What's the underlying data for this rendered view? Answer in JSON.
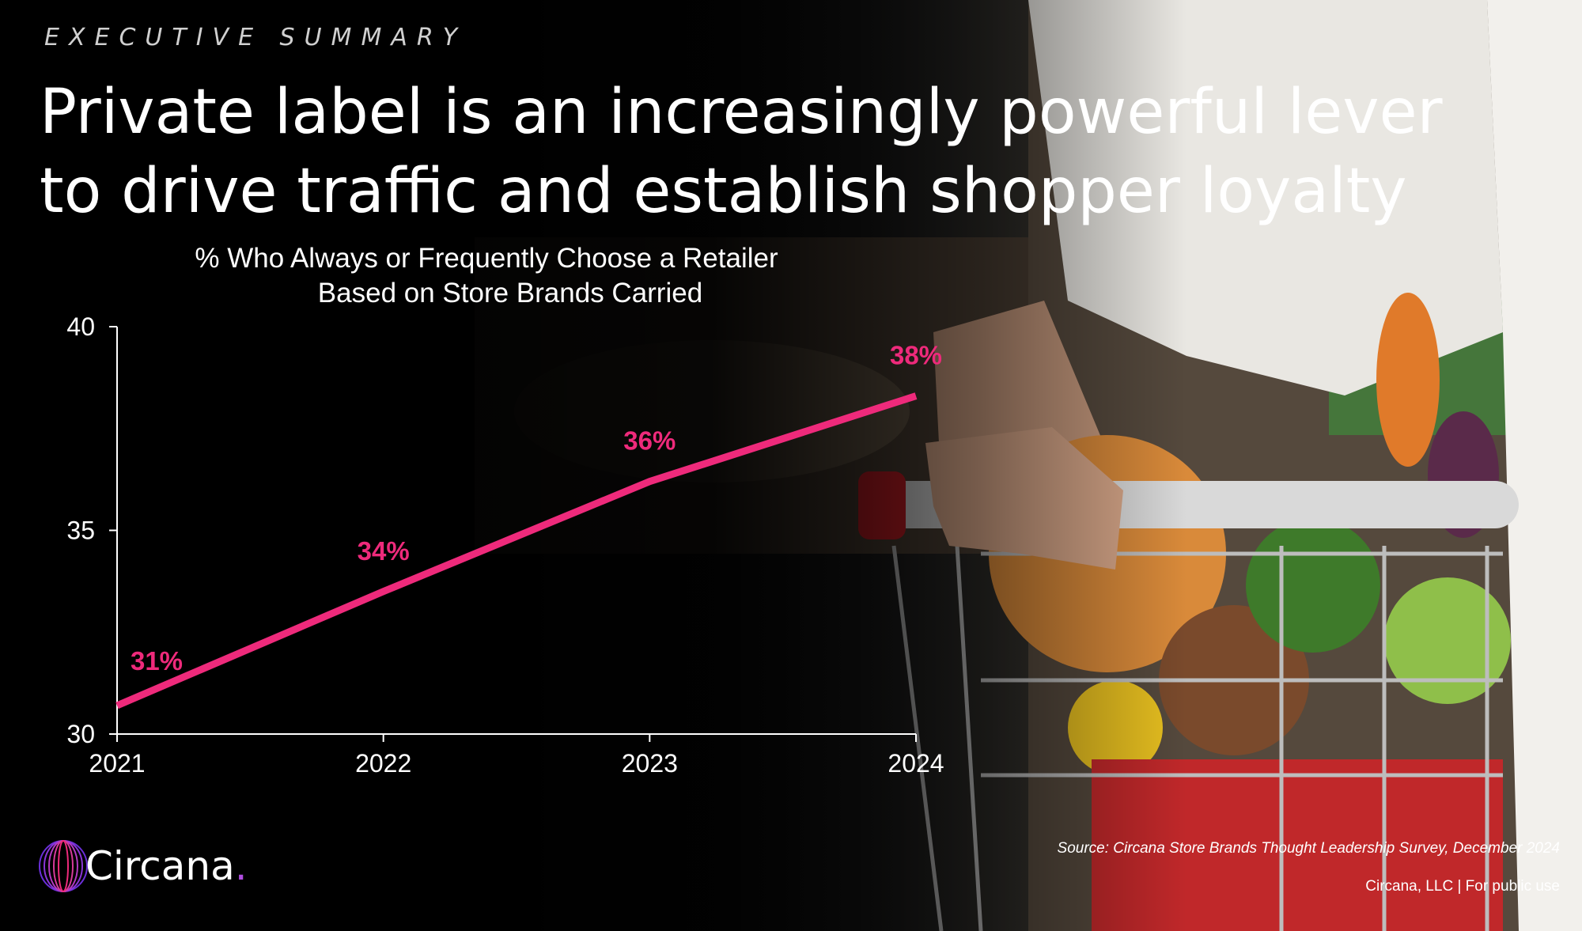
{
  "eyebrow": "EXECUTIVE SUMMARY",
  "headline": {
    "line1": "Private label is an increasingly powerful lever",
    "line2": "to drive traffic and establish shopper loyalty"
  },
  "colors": {
    "accent": "#ee2a7b",
    "brand_dot": "#b04de0",
    "text": "#ffffff"
  },
  "chart_data": {
    "type": "line",
    "title": [
      "% Who Always or Frequently Choose a Retailer",
      "Based on Store Brands Carried"
    ],
    "x": [
      "2021",
      "2022",
      "2023",
      "2024"
    ],
    "series": [
      {
        "values": [
          30.7,
          33.5,
          36.2,
          38.3
        ],
        "labels": [
          "31%",
          "34%",
          "36%",
          "38%"
        ]
      }
    ],
    "ylim": [
      30,
      40
    ],
    "yticks": [
      30,
      35,
      40
    ],
    "grid": false,
    "legend": "none"
  },
  "logo": {
    "name": "Circana",
    "icon": "circana-swirl-icon"
  },
  "source": "Source: Circana Store Brands Thought Leadership Survey, December 2024",
  "footer": "Circana, LLC |  For public use"
}
